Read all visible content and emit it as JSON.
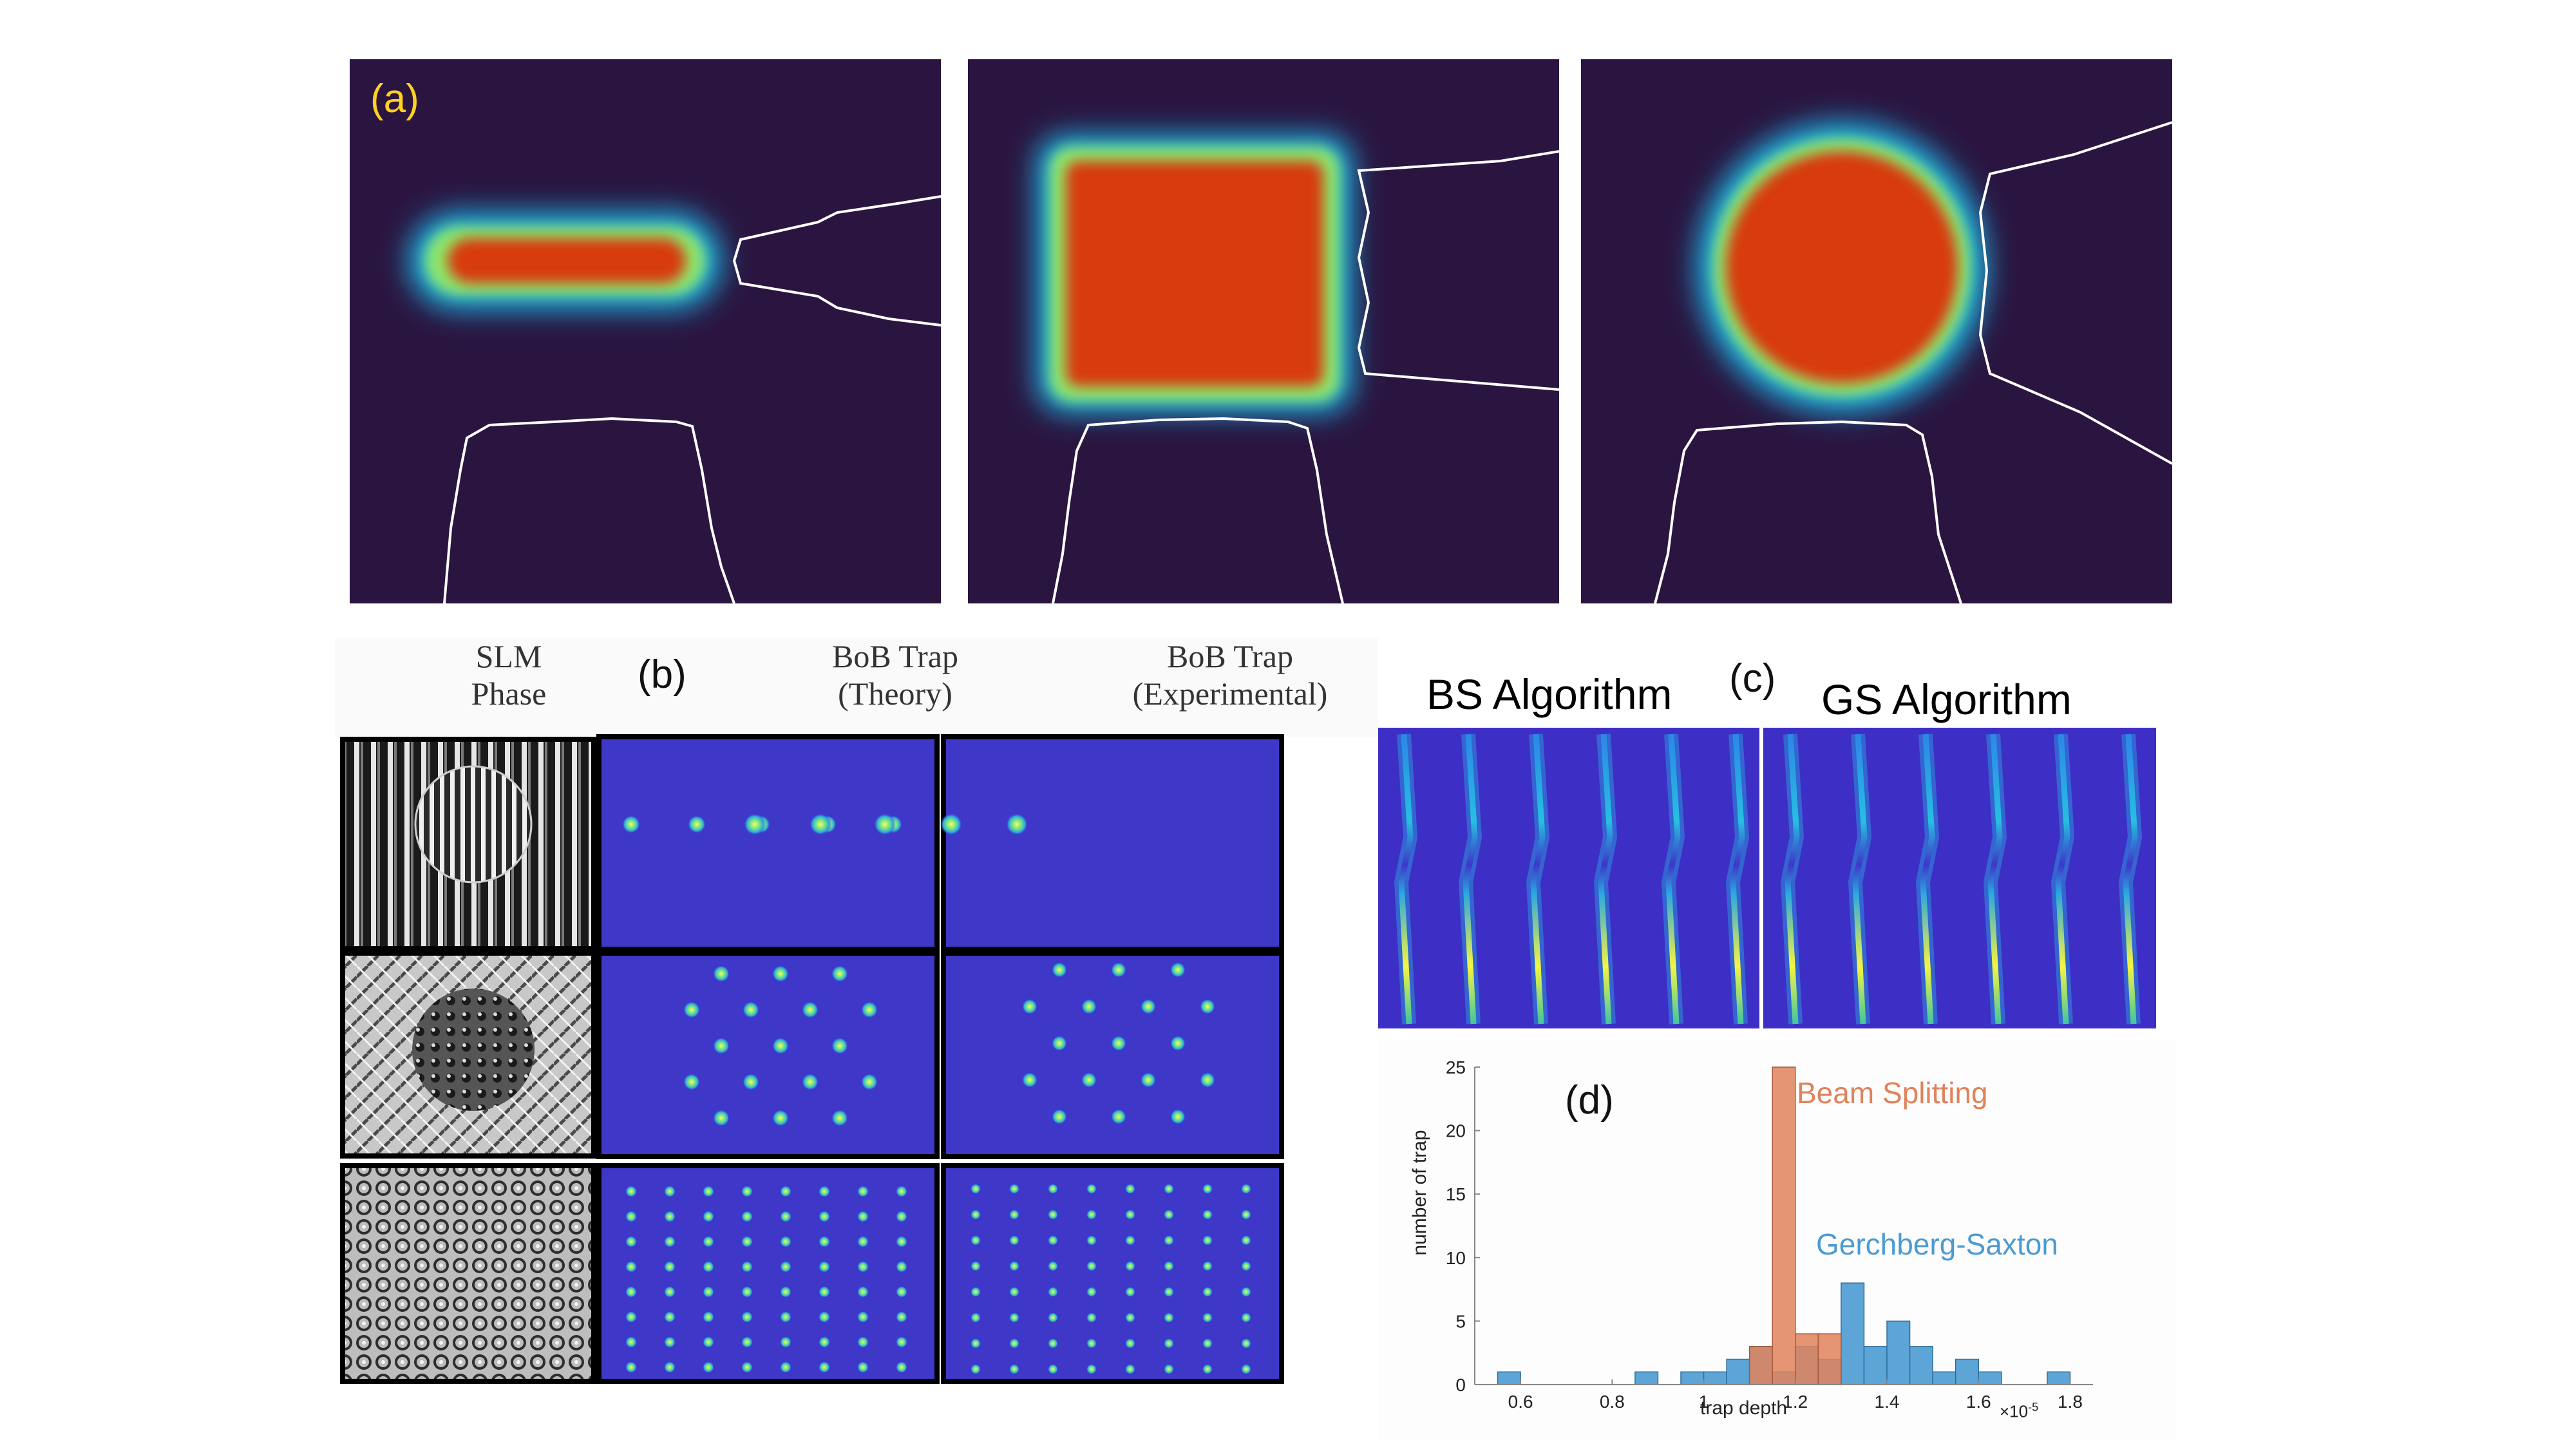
{
  "panel_a": {
    "label": "(a)",
    "background": "#2a1540",
    "label_color": "#ffd21f"
  },
  "panel_b": {
    "label": "(b)",
    "col_headers": [
      {
        "line1": "SLM",
        "line2": "Phase"
      },
      {
        "line1": "BoB Trap",
        "line2": "(Theory)"
      },
      {
        "line1": "BoB Trap",
        "line2": "(Experimental)"
      }
    ],
    "field_color": "#3e37c8"
  },
  "panel_c": {
    "label": "(c)",
    "left_title": "BS Algorithm",
    "right_title": "GS Algorithm",
    "field_color": "#3d2ec5"
  },
  "panel_d": {
    "label": "(d)",
    "ylabel": "number of trap",
    "xlabel": "trap depth",
    "exponent": "×10",
    "exponent_power": "-5",
    "yticks": [
      "0",
      "5",
      "10",
      "15",
      "20",
      "25"
    ],
    "xticks": [
      "0.6",
      "0.8",
      "1",
      "1.2",
      "1.4",
      "1.6",
      "1.8"
    ],
    "legend_bs": "Beam Splitting",
    "legend_gs": "Gerchberg-Saxton",
    "bs_color": "#e0825a",
    "gs_color": "#4a9bd1",
    "chart_data": {
      "type": "bar",
      "xlim": [
        0.5,
        1.85
      ],
      "ylim": [
        0,
        25
      ],
      "bin_width": 0.05,
      "series": [
        {
          "name": "Gerchberg-Saxton",
          "x": [
            0.575,
            0.875,
            0.975,
            1.025,
            1.075,
            1.125,
            1.175,
            1.225,
            1.275,
            1.325,
            1.375,
            1.425,
            1.475,
            1.525,
            1.575,
            1.625,
            1.775
          ],
          "values": [
            1,
            1,
            1,
            1,
            2,
            3,
            1,
            3,
            2,
            8,
            3,
            5,
            3,
            1,
            2,
            1,
            1
          ]
        },
        {
          "name": "Beam Splitting",
          "x": [
            1.125,
            1.175,
            1.225,
            1.275
          ],
          "values": [
            3,
            25,
            4,
            4
          ]
        }
      ]
    }
  }
}
